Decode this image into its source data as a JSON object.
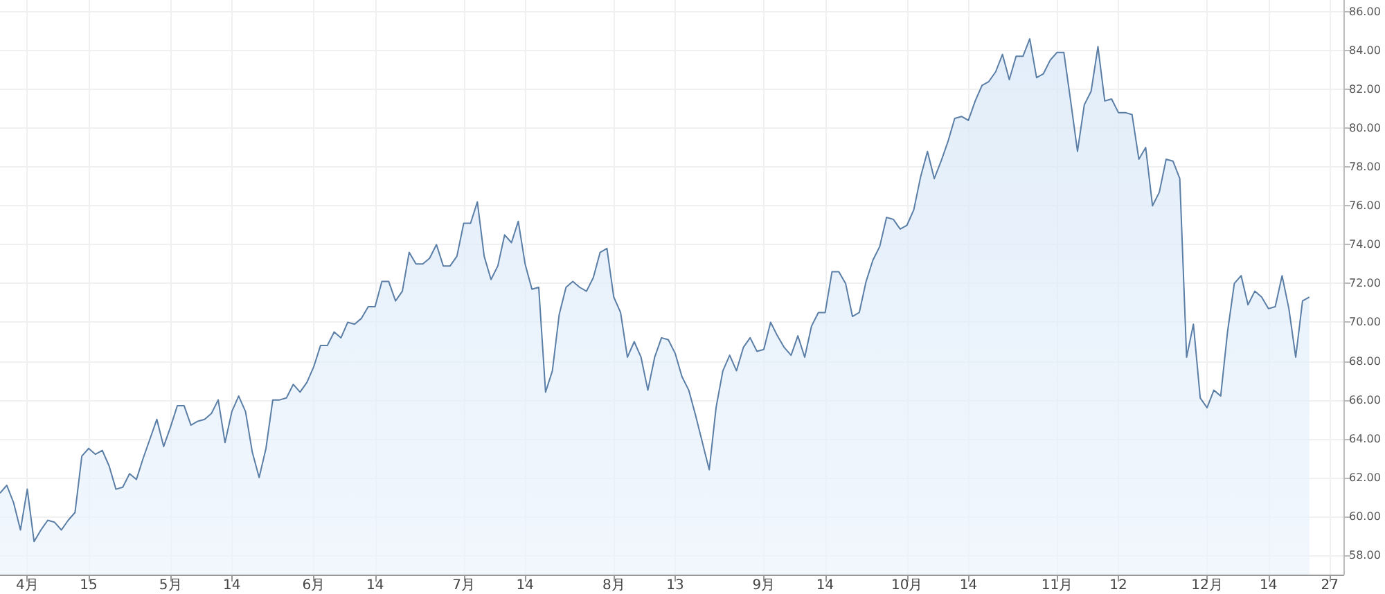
{
  "chart_data": {
    "type": "area",
    "color": "#5a7ea6",
    "grid": true,
    "marker": "none",
    "line_style": "solid",
    "categories": [
      null,
      null,
      null,
      null,
      "4月",
      null,
      null,
      null,
      null,
      null,
      null,
      null,
      null,
      "15",
      null,
      null,
      null,
      null,
      null,
      null,
      null,
      null,
      null,
      null,
      null,
      "5月",
      null,
      null,
      null,
      null,
      null,
      null,
      null,
      null,
      "14",
      null,
      null,
      null,
      null,
      null,
      null,
      null,
      null,
      null,
      null,
      null,
      "6月",
      null,
      null,
      null,
      null,
      null,
      null,
      null,
      null,
      "14",
      null,
      null,
      null,
      null,
      null,
      null,
      null,
      null,
      null,
      null,
      null,
      null,
      "7月",
      null,
      null,
      null,
      null,
      null,
      null,
      null,
      null,
      "14",
      null,
      null,
      null,
      null,
      null,
      null,
      null,
      null,
      null,
      null,
      null,
      null,
      "8月",
      null,
      null,
      null,
      null,
      null,
      null,
      null,
      null,
      "13",
      null,
      null,
      null,
      null,
      null,
      null,
      null,
      null,
      null,
      null,
      null,
      null,
      "9月",
      null,
      null,
      null,
      null,
      null,
      null,
      null,
      null,
      "14",
      null,
      null,
      null,
      null,
      null,
      null,
      null,
      null,
      null,
      null,
      null,
      "10月",
      null,
      null,
      null,
      null,
      null,
      null,
      null,
      null,
      "14",
      null,
      null,
      null,
      null,
      null,
      null,
      null,
      null,
      null,
      null,
      null,
      null,
      "11月",
      null,
      null,
      null,
      null,
      null,
      null,
      null,
      null,
      "12",
      null,
      null,
      null,
      null,
      null,
      null,
      null,
      null,
      null,
      null,
      null,
      null,
      "12月",
      null,
      null,
      null,
      null,
      null,
      null,
      null,
      null,
      "14",
      null,
      null,
      null,
      null,
      null,
      null,
      null,
      null,
      "27",
      null,
      null
    ],
    "values": [
      61.2,
      61.6,
      60.7,
      59.3,
      61.4,
      58.7,
      59.3,
      59.8,
      59.7,
      59.3,
      59.8,
      60.2,
      63.1,
      63.5,
      63.2,
      63.4,
      62.6,
      61.4,
      61.5,
      62.2,
      61.9,
      63.0,
      64.0,
      65.0,
      63.6,
      64.6,
      65.7,
      65.7,
      64.7,
      64.9,
      65.0,
      65.3,
      66.0,
      63.8,
      65.4,
      66.2,
      65.4,
      63.3,
      62.0,
      63.5,
      66.0,
      66.0,
      66.1,
      66.8,
      66.4,
      66.9,
      67.7,
      68.8,
      68.8,
      69.5,
      69.2,
      70.0,
      69.9,
      70.2,
      70.8,
      70.8,
      72.1,
      72.1,
      71.1,
      71.6,
      73.6,
      73.0,
      73.0,
      73.3,
      74.0,
      72.9,
      72.9,
      73.4,
      75.1,
      75.1,
      76.2,
      73.4,
      72.2,
      72.9,
      74.5,
      74.1,
      75.2,
      73.0,
      71.7,
      71.8,
      66.4,
      67.5,
      70.4,
      71.8,
      72.1,
      71.8,
      71.6,
      72.3,
      73.6,
      73.8,
      71.3,
      70.5,
      68.2,
      69.0,
      68.2,
      66.5,
      68.2,
      69.2,
      69.1,
      68.4,
      67.2,
      66.5,
      65.2,
      63.8,
      62.4,
      65.6,
      67.5,
      68.3,
      67.5,
      68.7,
      69.2,
      68.5,
      68.6,
      70.0,
      69.3,
      68.7,
      68.3,
      69.3,
      68.2,
      69.8,
      70.5,
      70.5,
      72.6,
      72.6,
      72.0,
      70.3,
      70.5,
      72.1,
      73.2,
      73.9,
      75.4,
      75.3,
      74.8,
      75.0,
      75.8,
      77.5,
      78.8,
      77.4,
      78.3,
      79.3,
      80.5,
      80.6,
      80.4,
      81.4,
      82.2,
      82.4,
      82.9,
      83.8,
      82.5,
      83.7,
      83.7,
      84.6,
      82.6,
      82.8,
      83.5,
      83.9,
      83.9,
      81.4,
      78.8,
      81.2,
      81.9,
      84.2,
      81.4,
      81.5,
      80.8,
      80.8,
      80.7,
      78.4,
      79.0,
      76.0,
      76.7,
      78.4,
      78.3,
      77.4,
      68.2,
      69.9,
      66.1,
      65.6,
      66.5,
      66.2,
      69.5,
      72.0,
      72.4,
      70.9,
      71.6,
      71.3,
      70.7,
      70.8,
      72.4,
      70.7,
      68.2,
      71.1,
      71.3,
      null,
      null,
      null,
      null,
      null
    ],
    "ylim": [
      57,
      86.6
    ],
    "yticks": [
      {
        "value": 58,
        "label": "58.00"
      },
      {
        "value": 60,
        "label": "60.00"
      },
      {
        "value": 62,
        "label": "62.00"
      },
      {
        "value": 64,
        "label": "64.00"
      },
      {
        "value": 66,
        "label": "66.00"
      },
      {
        "value": 68,
        "label": "68.00"
      },
      {
        "value": 70,
        "label": "70.00"
      },
      {
        "value": 72,
        "label": "72.00"
      },
      {
        "value": 74,
        "label": "74.00"
      },
      {
        "value": 76,
        "label": "76.00"
      },
      {
        "value": 78,
        "label": "78.00"
      },
      {
        "value": 80,
        "label": "80.00"
      },
      {
        "value": 82,
        "label": "82.00"
      },
      {
        "value": 84,
        "label": "84.00"
      },
      {
        "value": 86,
        "label": "86.00"
      }
    ]
  }
}
